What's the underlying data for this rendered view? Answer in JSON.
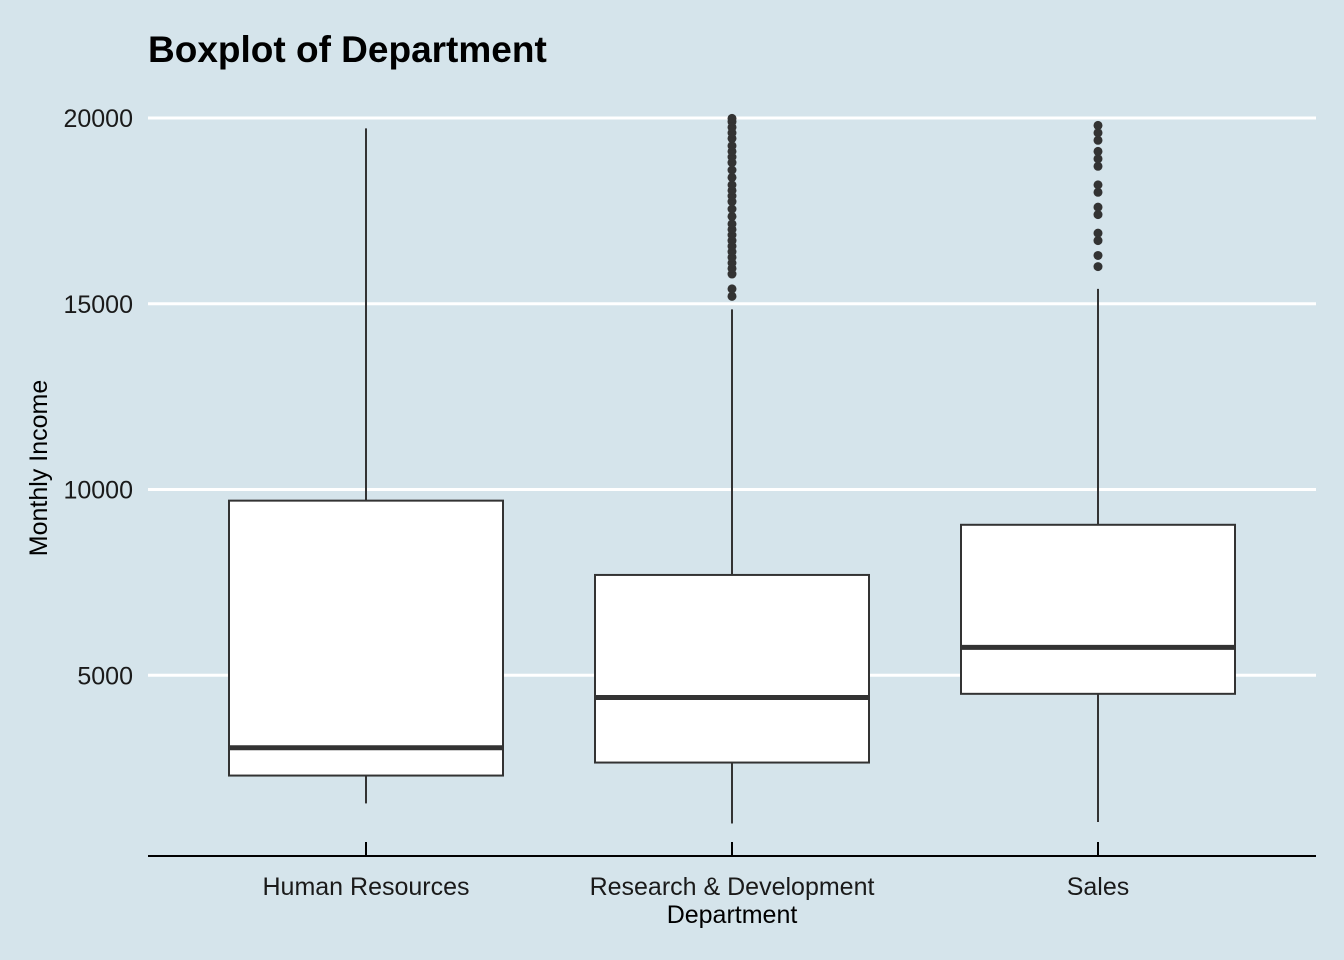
{
  "colors": {
    "background": "#d5e4eb",
    "gridline": "#ffffff",
    "box_fill": "#ffffff",
    "box_stroke": "#333333",
    "outlier": "#333333",
    "axis_line": "#000000"
  },
  "chart_data": {
    "type": "boxplot",
    "title": "Boxplot of Department",
    "xlabel": "Department",
    "ylabel": "Monthly Income",
    "ylim": [
      0,
      20000
    ],
    "yticks": [
      5000,
      10000,
      15000,
      20000
    ],
    "grid": "horizontal major gridlines",
    "legend": "none",
    "categories": [
      "Human Resources",
      "Research & Development",
      "Sales"
    ],
    "boxes": [
      {
        "category": "Human Resources",
        "whisker_low": 1550,
        "q1": 2300,
        "median": 3050,
        "q3": 9700,
        "whisker_high": 19720,
        "outliers": []
      },
      {
        "category": "Research & Development",
        "whisker_low": 1010,
        "q1": 2650,
        "median": 4400,
        "q3": 7700,
        "whisker_high": 14850,
        "outliers": [
          15200,
          15400,
          15800,
          15950,
          16100,
          16250,
          16400,
          16550,
          16700,
          16850,
          17000,
          17150,
          17350,
          17550,
          17750,
          17900,
          18050,
          18200,
          18400,
          18600,
          18800,
          18950,
          19100,
          19250,
          19450,
          19600,
          19750,
          19900,
          19990
        ]
      },
      {
        "category": "Sales",
        "whisker_low": 1050,
        "q1": 4500,
        "median": 5750,
        "q3": 9050,
        "whisker_high": 15400,
        "outliers": [
          16000,
          16300,
          16700,
          16900,
          17400,
          17600,
          18000,
          18200,
          18700,
          18900,
          19100,
          19400,
          19600,
          19800
        ]
      }
    ]
  }
}
